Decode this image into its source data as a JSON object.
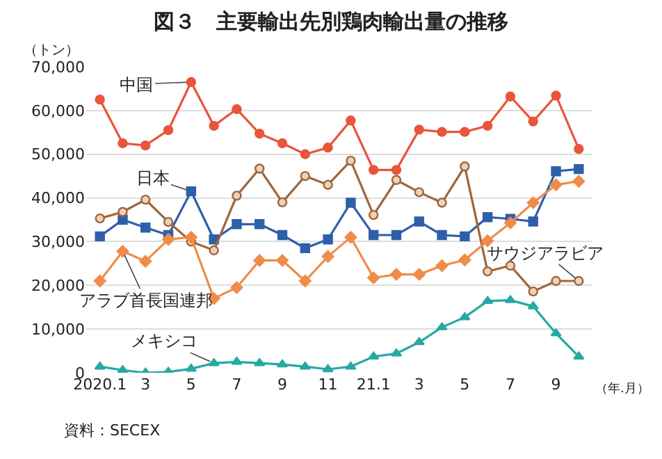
{
  "chart_data": {
    "type": "line",
    "title": "図３　主要輸出先別鶏肉輸出量の推移",
    "ylabel": "（トン）",
    "xlabel": "（年.月）",
    "categories": [
      "2020.1",
      null,
      "3",
      null,
      "5",
      null,
      "7",
      null,
      "9",
      null,
      "11",
      null,
      "21.1",
      null,
      "3",
      null,
      "5",
      null,
      "7",
      null,
      "9",
      null
    ],
    "series": [
      {
        "name": "中国",
        "color": "#e8553a",
        "marker": "circle",
        "values": [
          62500,
          52500,
          52000,
          55500,
          66500,
          56500,
          60300,
          54700,
          52500,
          50000,
          51500,
          57700,
          46400,
          46400,
          55600,
          55100,
          55100,
          56500,
          63200,
          57500,
          63400,
          51200
        ]
      },
      {
        "name": "日本",
        "color": "#2e5faa",
        "marker": "square",
        "values": [
          31200,
          35000,
          33200,
          31500,
          41500,
          30500,
          34000,
          34000,
          31500,
          28500,
          30500,
          38900,
          31500,
          31500,
          34600,
          31500,
          31200,
          35600,
          35200,
          34600,
          46100,
          46600
        ]
      },
      {
        "name": "サウジアラビア",
        "color": "#a0653a",
        "marker": "circle",
        "values": [
          35300,
          36800,
          39600,
          34500,
          30000,
          28000,
          40500,
          46700,
          39000,
          45000,
          43000,
          48500,
          36100,
          44100,
          41300,
          38900,
          47200,
          23200,
          24500,
          18600,
          21000,
          21000
        ]
      },
      {
        "name": "アラブ首長国連邦",
        "color": "#f08c4a",
        "marker": "diamond",
        "values": [
          21000,
          27800,
          25500,
          30500,
          31000,
          17000,
          19500,
          25700,
          25700,
          21000,
          26600,
          31000,
          21700,
          22500,
          22500,
          24500,
          25800,
          30200,
          34300,
          38900,
          43000,
          43800
        ]
      },
      {
        "name": "メキシコ",
        "color": "#26a9a4",
        "marker": "triangle",
        "values": [
          1400,
          600,
          0,
          200,
          900,
          2200,
          2500,
          2200,
          1900,
          1400,
          800,
          1400,
          3700,
          4400,
          7000,
          10400,
          12700,
          16400,
          16600,
          15200,
          9000,
          3700
        ]
      }
    ],
    "ylim": [
      0,
      70000
    ],
    "yticks": [
      0,
      {
        "value": 10000,
        "label": "10,000"
      },
      {
        "value": 20000,
        "label": "20,000"
      },
      {
        "value": 30000,
        "label": "30,000"
      },
      {
        "value": 40000,
        "label": "40,000"
      },
      {
        "value": 50000,
        "label": "50,000"
      },
      {
        "value": 60000,
        "label": "60,000"
      },
      {
        "value": 70000,
        "label": "70,000"
      }
    ],
    "grid": "y",
    "legend": false,
    "annotations": [
      "資料：SECEX"
    ]
  }
}
